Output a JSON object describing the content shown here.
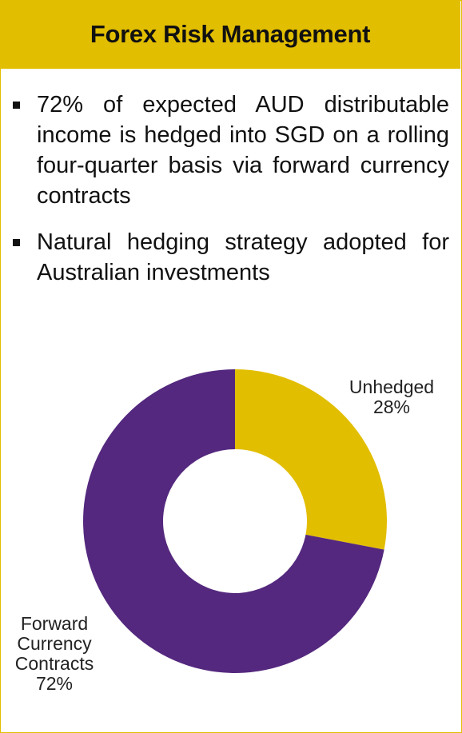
{
  "header": {
    "title": "Forex Risk Management"
  },
  "bullets": [
    "72% of expected AUD distributable income is hedged into SGD on a rolling four-quarter basis via forward currency contracts",
    "Natural hedging strategy adopted for Australian investments"
  ],
  "colors": {
    "accent": "#e2be00",
    "slice_unhedged": "#e2be00",
    "slice_forward": "#54287e"
  },
  "chart_data": {
    "type": "pie",
    "donut": true,
    "categories": [
      "Unhedged",
      "Forward Currency Contracts"
    ],
    "values": [
      28,
      72
    ],
    "labels": [
      {
        "lines": [
          "Unhedged",
          "28%"
        ]
      },
      {
        "lines": [
          "Forward",
          "Currency",
          "Contracts",
          "72%"
        ]
      }
    ],
    "colors": [
      "#e2be00",
      "#54287e"
    ],
    "legend": "none",
    "title": ""
  }
}
